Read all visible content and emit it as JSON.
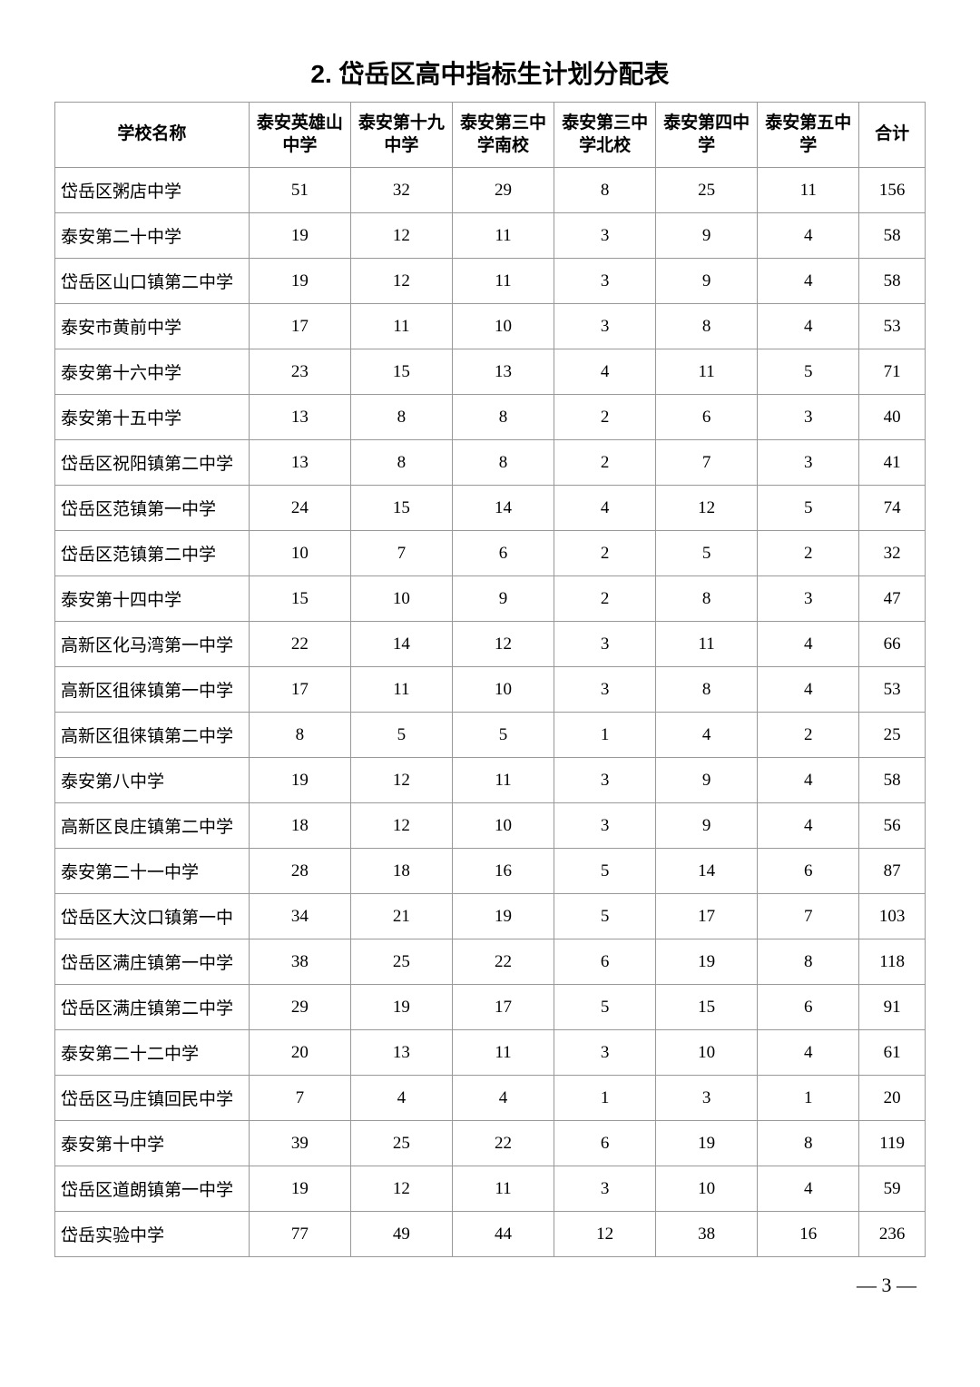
{
  "title": "2. 岱岳区高中指标生计划分配表",
  "headers": {
    "school": "学校名称",
    "c1": "泰安英雄山中学",
    "c2": "泰安第十九中学",
    "c3": "泰安第三中学南校",
    "c4": "泰安第三中学北校",
    "c5": "泰安第四中学",
    "c6": "泰安第五中学",
    "total": "合计"
  },
  "rows": [
    {
      "name": "岱岳区粥店中学",
      "c1": "51",
      "c2": "32",
      "c3": "29",
      "c4": "8",
      "c5": "25",
      "c6": "11",
      "total": "156"
    },
    {
      "name": "泰安第二十中学",
      "c1": "19",
      "c2": "12",
      "c3": "11",
      "c4": "3",
      "c5": "9",
      "c6": "4",
      "total": "58"
    },
    {
      "name": "岱岳区山口镇第二中学",
      "c1": "19",
      "c2": "12",
      "c3": "11",
      "c4": "3",
      "c5": "9",
      "c6": "4",
      "total": "58"
    },
    {
      "name": "泰安市黄前中学",
      "c1": "17",
      "c2": "11",
      "c3": "10",
      "c4": "3",
      "c5": "8",
      "c6": "4",
      "total": "53"
    },
    {
      "name": "泰安第十六中学",
      "c1": "23",
      "c2": "15",
      "c3": "13",
      "c4": "4",
      "c5": "11",
      "c6": "5",
      "total": "71"
    },
    {
      "name": "泰安第十五中学",
      "c1": "13",
      "c2": "8",
      "c3": "8",
      "c4": "2",
      "c5": "6",
      "c6": "3",
      "total": "40"
    },
    {
      "name": "岱岳区祝阳镇第二中学",
      "c1": "13",
      "c2": "8",
      "c3": "8",
      "c4": "2",
      "c5": "7",
      "c6": "3",
      "total": "41"
    },
    {
      "name": "岱岳区范镇第一中学",
      "c1": "24",
      "c2": "15",
      "c3": "14",
      "c4": "4",
      "c5": "12",
      "c6": "5",
      "total": "74"
    },
    {
      "name": "岱岳区范镇第二中学",
      "c1": "10",
      "c2": "7",
      "c3": "6",
      "c4": "2",
      "c5": "5",
      "c6": "2",
      "total": "32"
    },
    {
      "name": "泰安第十四中学",
      "c1": "15",
      "c2": "10",
      "c3": "9",
      "c4": "2",
      "c5": "8",
      "c6": "3",
      "total": "47"
    },
    {
      "name": "高新区化马湾第一中学",
      "c1": "22",
      "c2": "14",
      "c3": "12",
      "c4": "3",
      "c5": "11",
      "c6": "4",
      "total": "66"
    },
    {
      "name": "高新区徂徕镇第一中学",
      "c1": "17",
      "c2": "11",
      "c3": "10",
      "c4": "3",
      "c5": "8",
      "c6": "4",
      "total": "53"
    },
    {
      "name": "高新区徂徕镇第二中学",
      "c1": "8",
      "c2": "5",
      "c3": "5",
      "c4": "1",
      "c5": "4",
      "c6": "2",
      "total": "25"
    },
    {
      "name": "泰安第八中学",
      "c1": "19",
      "c2": "12",
      "c3": "11",
      "c4": "3",
      "c5": "9",
      "c6": "4",
      "total": "58"
    },
    {
      "name": "高新区良庄镇第二中学",
      "c1": "18",
      "c2": "12",
      "c3": "10",
      "c4": "3",
      "c5": "9",
      "c6": "4",
      "total": "56"
    },
    {
      "name": "泰安第二十一中学",
      "c1": "28",
      "c2": "18",
      "c3": "16",
      "c4": "5",
      "c5": "14",
      "c6": "6",
      "total": "87"
    },
    {
      "name": "岱岳区大汶口镇第一中",
      "c1": "34",
      "c2": "21",
      "c3": "19",
      "c4": "5",
      "c5": "17",
      "c6": "7",
      "total": "103"
    },
    {
      "name": "岱岳区满庄镇第一中学",
      "c1": "38",
      "c2": "25",
      "c3": "22",
      "c4": "6",
      "c5": "19",
      "c6": "8",
      "total": "118"
    },
    {
      "name": "岱岳区满庄镇第二中学",
      "c1": "29",
      "c2": "19",
      "c3": "17",
      "c4": "5",
      "c5": "15",
      "c6": "6",
      "total": "91"
    },
    {
      "name": "泰安第二十二中学",
      "c1": "20",
      "c2": "13",
      "c3": "11",
      "c4": "3",
      "c5": "10",
      "c6": "4",
      "total": "61"
    },
    {
      "name": "岱岳区马庄镇回民中学",
      "c1": "7",
      "c2": "4",
      "c3": "4",
      "c4": "1",
      "c5": "3",
      "c6": "1",
      "total": "20"
    },
    {
      "name": "泰安第十中学",
      "c1": "39",
      "c2": "25",
      "c3": "22",
      "c4": "6",
      "c5": "19",
      "c6": "8",
      "total": "119"
    },
    {
      "name": "岱岳区道朗镇第一中学",
      "c1": "19",
      "c2": "12",
      "c3": "11",
      "c4": "3",
      "c5": "10",
      "c6": "4",
      "total": "59"
    },
    {
      "name": "岱岳实验中学",
      "c1": "77",
      "c2": "49",
      "c3": "44",
      "c4": "12",
      "c5": "38",
      "c6": "16",
      "total": "236"
    }
  ],
  "pageNumber": "— 3 —"
}
